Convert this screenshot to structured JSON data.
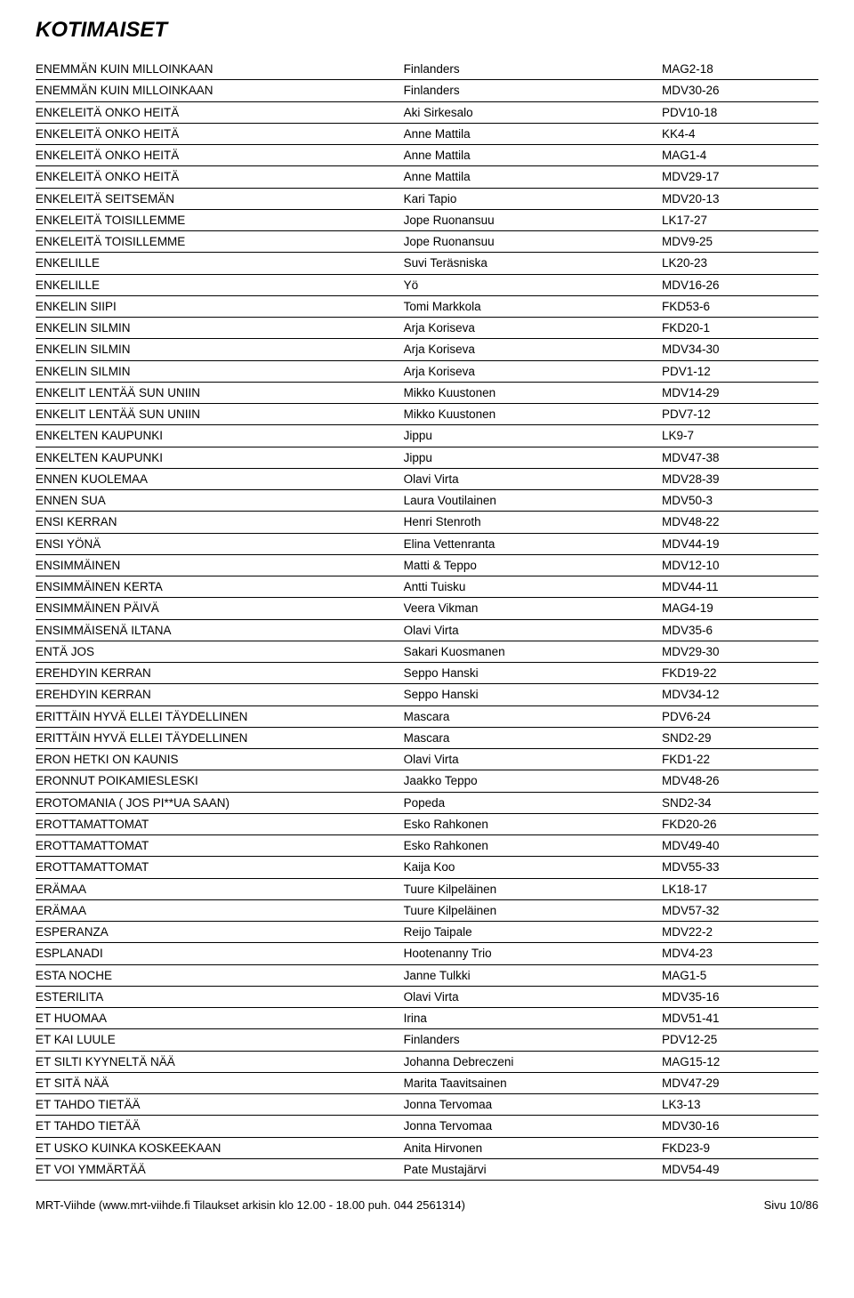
{
  "title": "KOTIMAISET",
  "columns": {
    "song_width": "47%",
    "artist_width": "33%",
    "code_width": "20%"
  },
  "styling": {
    "title_fontsize": 24,
    "title_weight": "bold",
    "title_style": "italic",
    "row_fontsize": 13.5,
    "border_color": "#000000",
    "bg_color": "#ffffff",
    "text_color": "#000000"
  },
  "rows": [
    [
      "ENEMMÄN KUIN MILLOINKAAN",
      "Finlanders",
      "MAG2-18"
    ],
    [
      "ENEMMÄN KUIN MILLOINKAAN",
      "Finlanders",
      "MDV30-26"
    ],
    [
      "ENKELEITÄ ONKO HEITÄ",
      "Aki Sirkesalo",
      "PDV10-18"
    ],
    [
      "ENKELEITÄ ONKO HEITÄ",
      "Anne Mattila",
      "KK4-4"
    ],
    [
      "ENKELEITÄ ONKO HEITÄ",
      "Anne Mattila",
      "MAG1-4"
    ],
    [
      "ENKELEITÄ ONKO HEITÄ",
      "Anne Mattila",
      "MDV29-17"
    ],
    [
      "ENKELEITÄ SEITSEMÄN",
      "Kari Tapio",
      "MDV20-13"
    ],
    [
      "ENKELEITÄ TOISILLEMME",
      "Jope Ruonansuu",
      "LK17-27"
    ],
    [
      "ENKELEITÄ TOISILLEMME",
      "Jope Ruonansuu",
      "MDV9-25"
    ],
    [
      "ENKELILLE",
      "Suvi Teräsniska",
      "LK20-23"
    ],
    [
      "ENKELILLE",
      "Yö",
      "MDV16-26"
    ],
    [
      "ENKELIN SIIPI",
      "Tomi Markkola",
      "FKD53-6"
    ],
    [
      "ENKELIN SILMIN",
      "Arja Koriseva",
      "FKD20-1"
    ],
    [
      "ENKELIN SILMIN",
      "Arja Koriseva",
      "MDV34-30"
    ],
    [
      "ENKELIN SILMIN",
      "Arja Koriseva",
      "PDV1-12"
    ],
    [
      "ENKELIT LENTÄÄ SUN UNIIN",
      "Mikko Kuustonen",
      "MDV14-29"
    ],
    [
      "ENKELIT LENTÄÄ SUN UNIIN",
      "Mikko Kuustonen",
      "PDV7-12"
    ],
    [
      "ENKELTEN KAUPUNKI",
      "Jippu",
      "LK9-7"
    ],
    [
      "ENKELTEN KAUPUNKI",
      "Jippu",
      "MDV47-38"
    ],
    [
      "ENNEN KUOLEMAA",
      "Olavi Virta",
      "MDV28-39"
    ],
    [
      "ENNEN SUA",
      "Laura Voutilainen",
      "MDV50-3"
    ],
    [
      "ENSI KERRAN",
      "Henri Stenroth",
      "MDV48-22"
    ],
    [
      "ENSI YÖNÄ",
      "Elina Vettenranta",
      "MDV44-19"
    ],
    [
      "ENSIMMÄINEN",
      "Matti & Teppo",
      "MDV12-10"
    ],
    [
      "ENSIMMÄINEN KERTA",
      "Antti Tuisku",
      "MDV44-11"
    ],
    [
      "ENSIMMÄINEN PÄIVÄ",
      "Veera Vikman",
      "MAG4-19"
    ],
    [
      "ENSIMMÄISENÄ ILTANA",
      "Olavi Virta",
      "MDV35-6"
    ],
    [
      "ENTÄ JOS",
      "Sakari Kuosmanen",
      "MDV29-30"
    ],
    [
      "EREHDYIN KERRAN",
      "Seppo Hanski",
      "FKD19-22"
    ],
    [
      "EREHDYIN KERRAN",
      "Seppo Hanski",
      "MDV34-12"
    ],
    [
      "ERITTÄIN HYVÄ ELLEI TÄYDELLINEN",
      "Mascara",
      "PDV6-24"
    ],
    [
      "ERITTÄIN HYVÄ ELLEI TÄYDELLINEN",
      "Mascara",
      "SND2-29"
    ],
    [
      "ERON HETKI ON KAUNIS",
      "Olavi Virta",
      "FKD1-22"
    ],
    [
      "ERONNUT POIKAMIESLESKI",
      "Jaakko Teppo",
      "MDV48-26"
    ],
    [
      "EROTOMANIA ( JOS PI**UA SAAN)",
      "Popeda",
      "SND2-34"
    ],
    [
      "EROTTAMATTOMAT",
      "Esko Rahkonen",
      "FKD20-26"
    ],
    [
      "EROTTAMATTOMAT",
      "Esko Rahkonen",
      "MDV49-40"
    ],
    [
      "EROTTAMATTOMAT",
      "Kaija Koo",
      "MDV55-33"
    ],
    [
      "ERÄMAA",
      "Tuure Kilpeläinen",
      "LK18-17"
    ],
    [
      "ERÄMAA",
      "Tuure Kilpeläinen",
      "MDV57-32"
    ],
    [
      "ESPERANZA",
      "Reijo Taipale",
      "MDV22-2"
    ],
    [
      "ESPLANADI",
      "Hootenanny Trio",
      "MDV4-23"
    ],
    [
      "ESTA NOCHE",
      "Janne Tulkki",
      "MAG1-5"
    ],
    [
      "ESTERILITA",
      "Olavi Virta",
      "MDV35-16"
    ],
    [
      "ET HUOMAA",
      "Irina",
      "MDV51-41"
    ],
    [
      "ET KAI LUULE",
      "Finlanders",
      "PDV12-25"
    ],
    [
      "ET SILTI KYYNELTÄ NÄÄ",
      "Johanna Debreczeni",
      "MAG15-12"
    ],
    [
      "ET SITÄ NÄÄ",
      "Marita Taavitsainen",
      "MDV47-29"
    ],
    [
      "ET TAHDO TIETÄÄ",
      "Jonna Tervomaa",
      "LK3-13"
    ],
    [
      "ET TAHDO TIETÄÄ",
      "Jonna Tervomaa",
      "MDV30-16"
    ],
    [
      "ET USKO KUINKA KOSKEEKAAN",
      "Anita Hirvonen",
      "FKD23-9"
    ],
    [
      "ET VOI YMMÄRTÄÄ",
      "Pate Mustajärvi",
      "MDV54-49"
    ]
  ],
  "footer": {
    "left": "MRT-Viihde (www.mrt-viihde.fi Tilaukset arkisin klo 12.00 - 18.00 puh. 044 2561314)",
    "right": "Sivu 10/86"
  }
}
